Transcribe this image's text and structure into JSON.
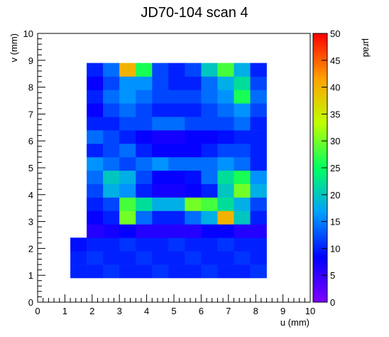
{
  "chart_data": {
    "type": "heatmap",
    "title": "JD70-104 scan 4",
    "x_label": "u (mm)",
    "y_label": "v (mm)",
    "colorbar_label": "µrad",
    "xlim": [
      0,
      10
    ],
    "ylim": [
      0,
      10
    ],
    "zlim": [
      0,
      50
    ],
    "xticks": [
      0,
      1,
      2,
      3,
      4,
      5,
      6,
      7,
      8,
      9,
      10
    ],
    "yticks": [
      0,
      1,
      2,
      3,
      4,
      5,
      6,
      7,
      8,
      9,
      10
    ],
    "zticks": [
      0,
      5,
      10,
      15,
      20,
      25,
      30,
      35,
      40,
      45,
      50
    ],
    "colormap": [
      "#8000ff",
      "#0000ff",
      "#00a0ff",
      "#00ff60",
      "#c0ff00",
      "#ffa000",
      "#ff0000"
    ],
    "xbins": [
      1.2,
      1.8,
      2.4,
      3.0,
      3.6,
      4.2,
      4.8,
      5.4,
      6.0,
      6.6,
      7.2,
      7.8,
      8.4
    ],
    "ybins": [
      0.9,
      1.4,
      1.9,
      2.4,
      2.9,
      3.4,
      3.9,
      4.4,
      4.9,
      5.4,
      5.9,
      6.4,
      6.9,
      7.4,
      7.9,
      8.4,
      8.9
    ],
    "z": [
      [
        10,
        10,
        11,
        10,
        10,
        11,
        10,
        10,
        11,
        10,
        10,
        11
      ],
      [
        10,
        11,
        10,
        10,
        11,
        10,
        10,
        11,
        10,
        10,
        11,
        10
      ],
      [
        9,
        10,
        10,
        11,
        10,
        10,
        11,
        10,
        10,
        11,
        10,
        10
      ],
      [
        null,
        6,
        7,
        8,
        6,
        6,
        6,
        6,
        8,
        8,
        6,
        6
      ],
      [
        null,
        8,
        10,
        30,
        14,
        10,
        10,
        14,
        18,
        40,
        20,
        10
      ],
      [
        null,
        10,
        12,
        28,
        22,
        18,
        18,
        30,
        28,
        22,
        18,
        12
      ],
      [
        null,
        12,
        18,
        16,
        10,
        7,
        7,
        8,
        10,
        20,
        30,
        18
      ],
      [
        null,
        14,
        20,
        18,
        12,
        8,
        8,
        9,
        14,
        22,
        26,
        16
      ],
      [
        null,
        16,
        14,
        12,
        14,
        16,
        14,
        14,
        14,
        16,
        14,
        10
      ],
      [
        null,
        10,
        12,
        14,
        10,
        8,
        8,
        8,
        10,
        12,
        12,
        10
      ],
      [
        null,
        14,
        12,
        10,
        8,
        7,
        7,
        8,
        8,
        9,
        10,
        10
      ],
      [
        null,
        10,
        10,
        12,
        12,
        14,
        14,
        12,
        12,
        12,
        14,
        10
      ],
      [
        null,
        8,
        12,
        14,
        12,
        10,
        10,
        10,
        12,
        14,
        16,
        12
      ],
      [
        null,
        10,
        14,
        16,
        14,
        12,
        12,
        12,
        14,
        16,
        26,
        14
      ],
      [
        null,
        8,
        12,
        16,
        16,
        12,
        10,
        10,
        14,
        18,
        22,
        12
      ],
      [
        null,
        10,
        14,
        40,
        26,
        12,
        10,
        12,
        20,
        28,
        18,
        10
      ]
    ]
  }
}
